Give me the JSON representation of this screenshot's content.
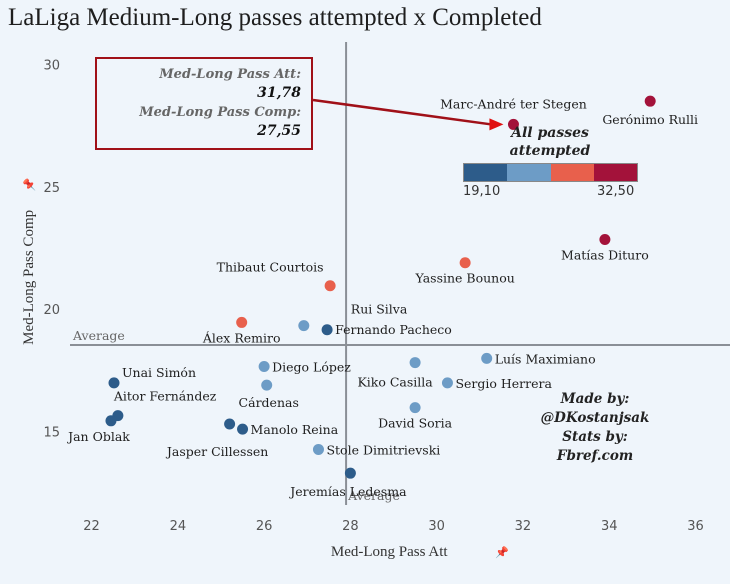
{
  "chart_data": {
    "type": "scatter",
    "title": "LaLiga Medium-Long passes attempted x Completed",
    "xlabel": "Med-Long Pass Att",
    "ylabel": "Med-Long Pass Comp",
    "xlim": [
      21.5,
      36.8
    ],
    "ylim": [
      12.0,
      31.0
    ],
    "xticks": [
      22,
      24,
      26,
      28,
      30,
      32,
      34,
      36
    ],
    "yticks": [
      15,
      20,
      25,
      30
    ],
    "averages": {
      "x": 27.9,
      "y": 18.54,
      "x_label": "Average",
      "y_label": "Average"
    },
    "color_legend": {
      "title": "All passes attempted",
      "min_label": "19,10",
      "max_label": "32,50",
      "colors": [
        "#2d5c8a",
        "#6d9cc6",
        "#e8604c",
        "#a3123a"
      ]
    },
    "points": [
      {
        "name": "Gerónimo Rulli",
        "x": 34.95,
        "y": 28.5,
        "color_bin": 3,
        "label_pos": "below-right"
      },
      {
        "name": "Marc-André ter Stegen",
        "x": 31.78,
        "y": 27.55,
        "color_bin": 3,
        "label_pos": "above"
      },
      {
        "name": "Matías Dituro",
        "x": 33.9,
        "y": 22.85,
        "color_bin": 3,
        "label_pos": "below"
      },
      {
        "name": "Yassine Bounou",
        "x": 30.66,
        "y": 21.9,
        "color_bin": 2,
        "label_pos": "below"
      },
      {
        "name": "Thibaut Courtois",
        "x": 27.53,
        "y": 20.96,
        "color_bin": 2,
        "label_pos": "above-left"
      },
      {
        "name": "Álex Remiro",
        "x": 25.48,
        "y": 19.46,
        "color_bin": 2,
        "label_pos": "below"
      },
      {
        "name": "Rui Silva",
        "x": 26.92,
        "y": 19.33,
        "color_bin": 1,
        "label_pos": "above-right"
      },
      {
        "name": "Fernando Pacheco",
        "x": 27.46,
        "y": 19.16,
        "color_bin": 0,
        "label_pos": "right"
      },
      {
        "name": "Diego López",
        "x": 26.0,
        "y": 17.66,
        "color_bin": 1,
        "label_pos": "right"
      },
      {
        "name": "Cárdenas",
        "x": 26.06,
        "y": 16.9,
        "color_bin": 1,
        "label_pos": "below"
      },
      {
        "name": "Kiko Casilla",
        "x": 29.5,
        "y": 17.82,
        "color_bin": 1,
        "label_pos": "below-left"
      },
      {
        "name": "Luís Maximiano",
        "x": 31.16,
        "y": 17.99,
        "color_bin": 1,
        "label_pos": "right"
      },
      {
        "name": "Sergio Herrera",
        "x": 30.25,
        "y": 16.99,
        "color_bin": 1,
        "label_pos": "right"
      },
      {
        "name": "David Soria",
        "x": 29.5,
        "y": 15.98,
        "color_bin": 1,
        "label_pos": "below"
      },
      {
        "name": "Unai Simón",
        "x": 22.52,
        "y": 16.99,
        "color_bin": 0,
        "label_pos": "above-right"
      },
      {
        "name": "Aitor Fernández",
        "x": 22.61,
        "y": 15.65,
        "color_bin": 0,
        "label_pos": "above-right"
      },
      {
        "name": "Jan Oblak",
        "x": 22.45,
        "y": 15.44,
        "color_bin": 0,
        "label_pos": "below"
      },
      {
        "name": "Jasper Cillessen",
        "x": 25.2,
        "y": 15.31,
        "color_bin": 0,
        "label_pos": "below"
      },
      {
        "name": "Manolo Reina",
        "x": 25.5,
        "y": 15.1,
        "color_bin": 0,
        "label_pos": "right"
      },
      {
        "name": "Stole Dimitrievski",
        "x": 27.26,
        "y": 14.27,
        "color_bin": 1,
        "label_pos": "right"
      },
      {
        "name": "Jeremías Ledesma",
        "x": 28.0,
        "y": 13.3,
        "color_bin": 0,
        "label_pos": "below"
      }
    ],
    "annotation": {
      "target": "Marc-André ter Stegen",
      "att_label": "Med-Long Pass Att:",
      "att_value": "31,78",
      "comp_label": "Med-Long Pass Comp:",
      "comp_value": "27,55",
      "color": "#a01018"
    },
    "credits": [
      "Made by:",
      "@DKostanjsak",
      "Stats by:",
      "Fbref.com"
    ]
  }
}
